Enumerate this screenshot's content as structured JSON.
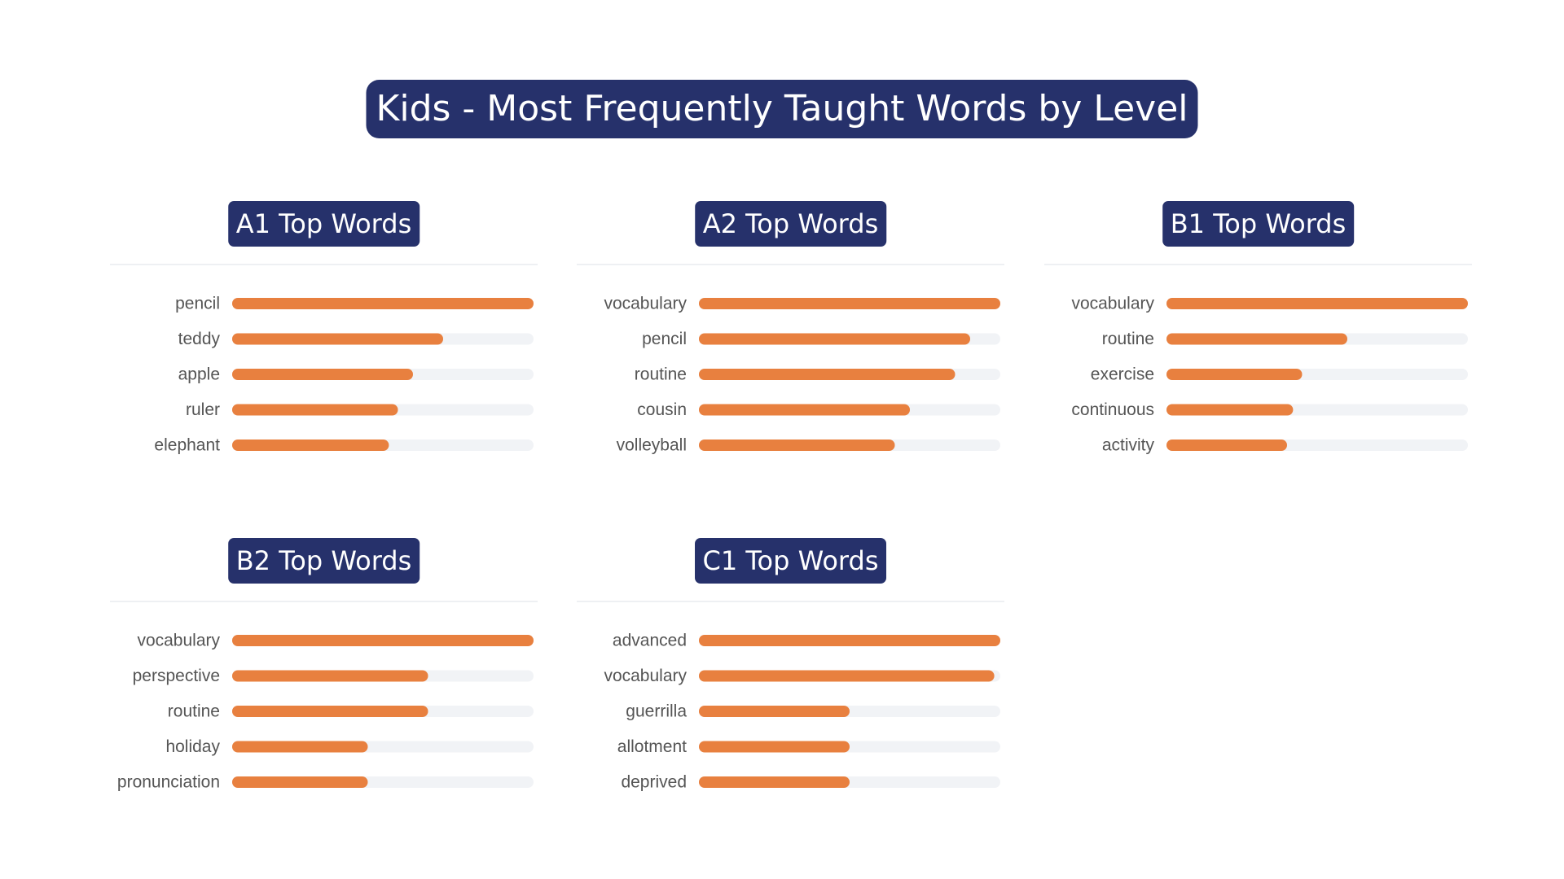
{
  "title": "Kids - Most Frequently Taught Words by Level",
  "colors": {
    "title_bg": "#26316b",
    "bar": "#e8803f",
    "track": "#f1f3f6",
    "label": "#555555"
  },
  "chart_data": [
    {
      "type": "bar",
      "orientation": "horizontal",
      "title": "A1 Top Words",
      "categories": [
        "pencil",
        "teddy",
        "apple",
        "ruler",
        "elephant"
      ],
      "values": [
        100,
        70,
        60,
        55,
        52
      ],
      "xlim": [
        0,
        100
      ]
    },
    {
      "type": "bar",
      "orientation": "horizontal",
      "title": "A2 Top Words",
      "categories": [
        "vocabulary",
        "pencil",
        "routine",
        "cousin",
        "volleyball"
      ],
      "values": [
        100,
        90,
        85,
        70,
        65
      ],
      "xlim": [
        0,
        100
      ]
    },
    {
      "type": "bar",
      "orientation": "horizontal",
      "title": "B1 Top Words",
      "categories": [
        "vocabulary",
        "routine",
        "exercise",
        "continuous",
        "activity"
      ],
      "values": [
        100,
        60,
        45,
        42,
        40
      ],
      "xlim": [
        0,
        100
      ]
    },
    {
      "type": "bar",
      "orientation": "horizontal",
      "title": "B2 Top Words",
      "categories": [
        "vocabulary",
        "perspective",
        "routine",
        "holiday",
        "pronunciation"
      ],
      "values": [
        100,
        65,
        65,
        45,
        45
      ],
      "xlim": [
        0,
        100
      ]
    },
    {
      "type": "bar",
      "orientation": "horizontal",
      "title": "C1 Top Words",
      "categories": [
        "advanced",
        "vocabulary",
        "guerrilla",
        "allotment",
        "deprived"
      ],
      "values": [
        100,
        98,
        50,
        50,
        50
      ],
      "xlim": [
        0,
        100
      ]
    }
  ]
}
